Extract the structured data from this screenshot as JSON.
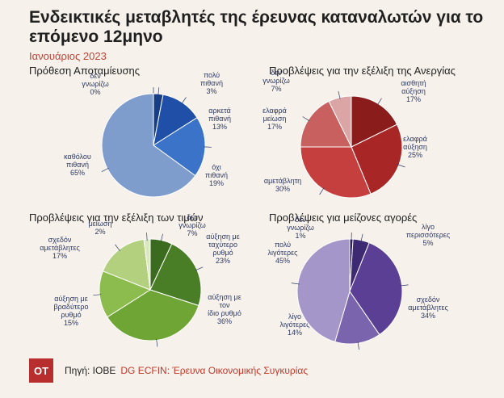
{
  "header": {
    "title": "Ενδεικτικές μεταβλητές της έρευνας καταναλωτών για το επόμενο 12μηνο",
    "subtitle": "Ιανουάριος 2023"
  },
  "footer": {
    "logo": "ΟΤ",
    "source_label": "Πηγή: ΙΟΒΕ",
    "source_extra": "DG ECFIN: Έρευνα Οικονομικής Συγκυρίας"
  },
  "chart_data": [
    {
      "type": "pie",
      "title": "Πρόθεση Αποταμίευσης",
      "slices": [
        {
          "label": "δεν γνωρίζω",
          "value": 0,
          "text": "0%",
          "color": "#0f2f66"
        },
        {
          "label": "πολύ πιθανή",
          "value": 3,
          "text": "3%",
          "color": "#163d86"
        },
        {
          "label": "αρκετά πιθανή",
          "value": 13,
          "text": "13%",
          "color": "#1f4fa6"
        },
        {
          "label": "όχι πιθανή",
          "value": 19,
          "text": "19%",
          "color": "#3a73c8"
        },
        {
          "label": "καθόλου πιθανή",
          "value": 65,
          "text": "65%",
          "color": "#7e9ccc"
        }
      ]
    },
    {
      "type": "pie",
      "title": "Προβλέψεις για την εξέλιξη της Ανεργίας",
      "slices": [
        {
          "label": "αισθητή αύξηση",
          "value": 17,
          "text": "17%",
          "color": "#8a1c1c"
        },
        {
          "label": "ελαφρά αύξηση",
          "value": 25,
          "text": "25%",
          "color": "#a92626"
        },
        {
          "label": "αμετάβλητη",
          "value": 30,
          "text": "30%",
          "color": "#c63f3f"
        },
        {
          "label": "ελαφρά μείωση",
          "value": 17,
          "text": "17%",
          "color": "#c96060"
        },
        {
          "label": "δεν γνωρίζω",
          "value": 7,
          "text": "7%",
          "color": "#dba5a5"
        }
      ]
    },
    {
      "type": "pie",
      "title": "Προβλέψεις για την εξέλιξη των τιμών",
      "slices": [
        {
          "label": "δεν γνωρίζω",
          "value": 7,
          "text": "7%",
          "color": "#3a6b1e"
        },
        {
          "label": "αύξηση με ταχύτερο ρυθμό",
          "value": 23,
          "text": "23%",
          "color": "#4a7e26"
        },
        {
          "label": "αύξηση με τον ίδιο ρυθμό",
          "value": 36,
          "text": "36%",
          "color": "#6fa535"
        },
        {
          "label": "αύξηση με βραδύτερο ρυθμό",
          "value": 15,
          "text": "15%",
          "color": "#8cbc4d"
        },
        {
          "label": "σχεδόν αμετάβλητες",
          "value": 17,
          "text": "17%",
          "color": "#b2d07d"
        },
        {
          "label": "μείωση",
          "value": 2,
          "text": "2%",
          "color": "#d9e8be"
        }
      ]
    },
    {
      "type": "pie",
      "title": "Προβλέψεις για μείζονες αγορές",
      "slices": [
        {
          "label": "δεν γνωρίζω",
          "value": 1,
          "text": "1%",
          "color": "#2e1f57"
        },
        {
          "label": "λίγο περισσότερες",
          "value": 5,
          "text": "5%",
          "color": "#3e2a72"
        },
        {
          "label": "σχεδόν αμετάβλητες",
          "value": 34,
          "text": "34%",
          "color": "#5a3f94"
        },
        {
          "label": "λίγο λιγότερες",
          "value": 14,
          "text": "14%",
          "color": "#7a64ad"
        },
        {
          "label": "πολύ λιγότερες",
          "value": 45,
          "text": "45%",
          "color": "#a596c9"
        }
      ]
    }
  ]
}
